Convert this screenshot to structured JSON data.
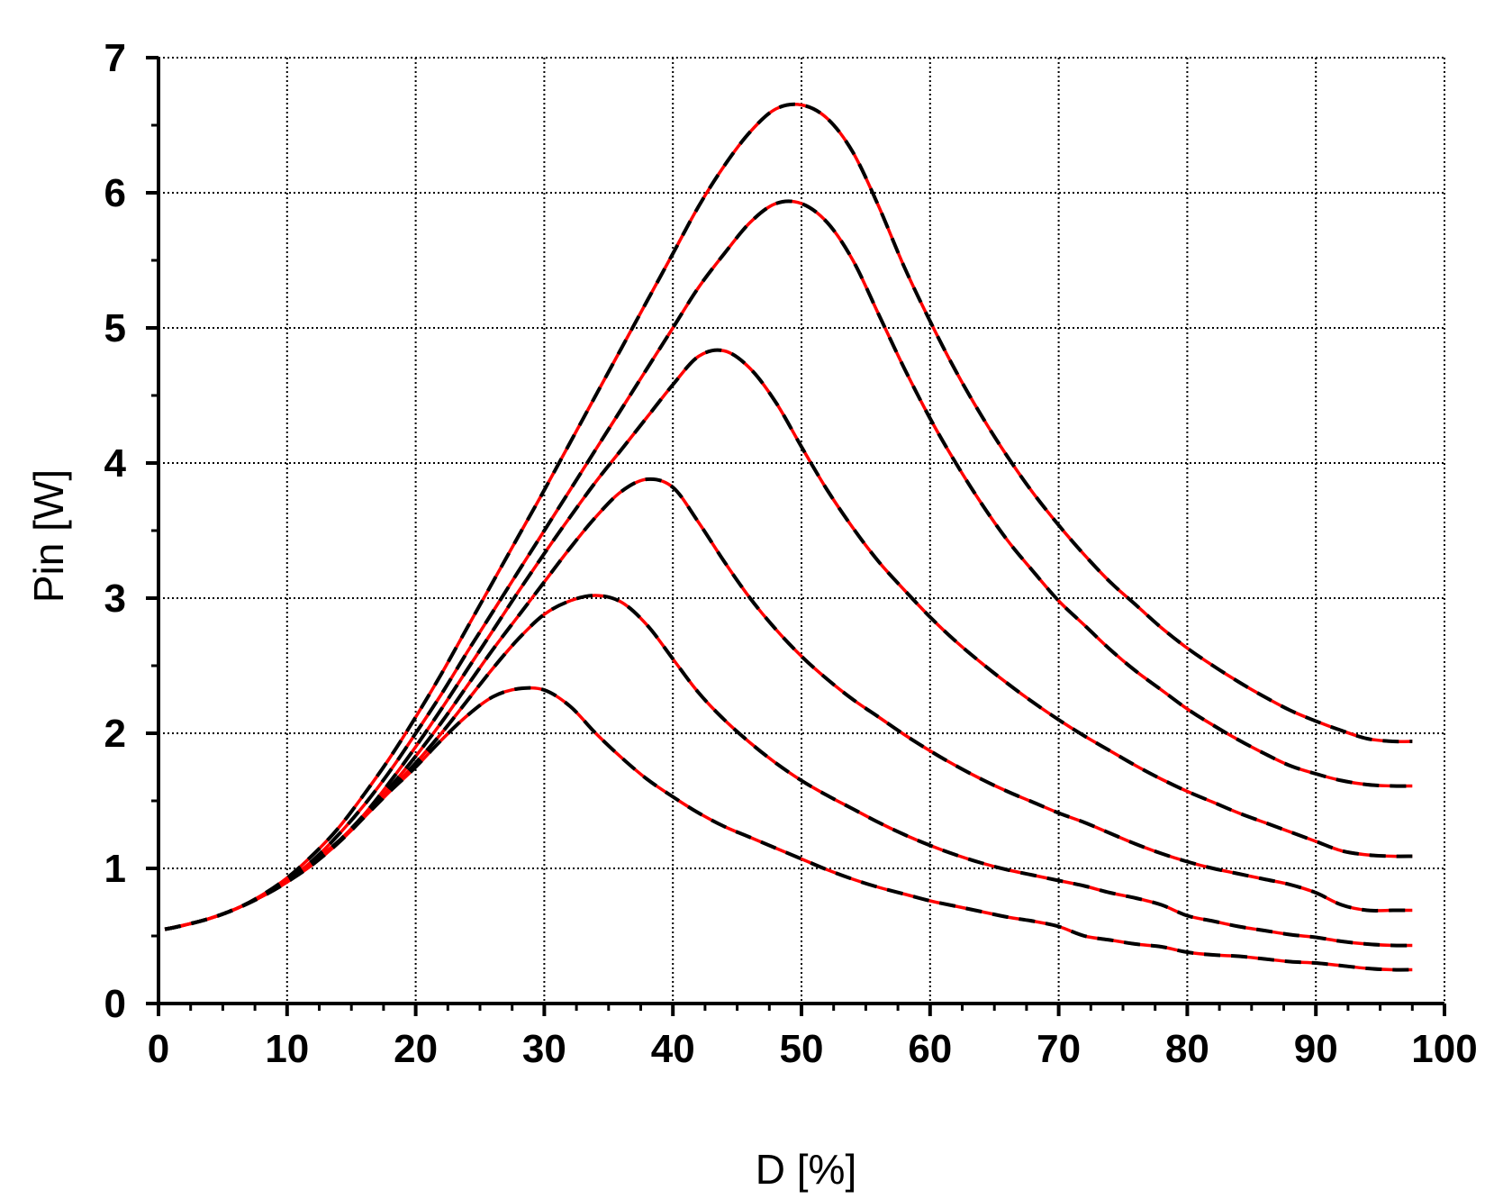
{
  "chart_data": {
    "type": "line",
    "xlabel": "D [%]",
    "ylabel": "Pin [W]",
    "xlim": [
      0,
      100
    ],
    "ylim": [
      0,
      7
    ],
    "xticks": [
      "0",
      "10",
      "20",
      "30",
      "40",
      "50",
      "60",
      "70",
      "80",
      "90",
      "100"
    ],
    "yticks": [
      "0",
      "1",
      "2",
      "3",
      "4",
      "5",
      "6",
      "7"
    ],
    "grid": true,
    "line_styles": {
      "simulated": "#ff0000",
      "measured": "dashed #000000"
    },
    "series": [
      {
        "x": [
          0.5,
          2,
          4,
          6,
          8,
          10,
          12,
          14,
          16,
          18,
          20,
          22,
          24,
          26,
          28,
          30,
          32,
          34,
          36,
          38,
          40,
          42,
          44,
          46,
          48,
          50,
          52,
          54,
          56,
          58,
          60,
          62,
          64,
          66,
          68,
          70,
          72,
          74,
          76,
          78,
          80,
          82,
          84,
          86,
          88,
          90,
          92,
          94,
          96,
          97.5
        ],
        "y": [
          0.55,
          0.58,
          0.63,
          0.7,
          0.79,
          0.9,
          1.05,
          1.2,
          1.38,
          1.57,
          1.75,
          1.95,
          2.13,
          2.27,
          2.33,
          2.32,
          2.2,
          2.0,
          1.82,
          1.66,
          1.53,
          1.41,
          1.31,
          1.23,
          1.15,
          1.07,
          0.99,
          0.92,
          0.86,
          0.81,
          0.76,
          0.72,
          0.68,
          0.64,
          0.61,
          0.57,
          0.5,
          0.47,
          0.44,
          0.42,
          0.38,
          0.36,
          0.35,
          0.33,
          0.31,
          0.3,
          0.28,
          0.26,
          0.25,
          0.25
        ]
      },
      {
        "x": [
          0.5,
          2,
          4,
          6,
          8,
          10,
          12,
          14,
          16,
          18,
          20,
          22,
          24,
          26,
          28,
          30,
          32,
          34,
          36,
          38,
          40,
          42,
          44,
          46,
          48,
          50,
          52,
          54,
          56,
          58,
          60,
          62,
          64,
          66,
          68,
          70,
          72,
          74,
          76,
          78,
          80,
          82,
          84,
          86,
          88,
          90,
          92,
          94,
          96,
          97.5
        ],
        "y": [
          0.55,
          0.58,
          0.63,
          0.7,
          0.79,
          0.9,
          1.04,
          1.2,
          1.38,
          1.58,
          1.78,
          2.0,
          2.24,
          2.48,
          2.7,
          2.88,
          2.98,
          3.02,
          2.97,
          2.8,
          2.55,
          2.3,
          2.1,
          1.93,
          1.78,
          1.65,
          1.54,
          1.44,
          1.34,
          1.25,
          1.17,
          1.1,
          1.04,
          0.99,
          0.95,
          0.91,
          0.87,
          0.82,
          0.78,
          0.73,
          0.65,
          0.61,
          0.57,
          0.54,
          0.51,
          0.49,
          0.46,
          0.44,
          0.43,
          0.43
        ]
      },
      {
        "x": [
          0.5,
          2,
          4,
          6,
          8,
          10,
          12,
          14,
          16,
          18,
          20,
          22,
          24,
          26,
          28,
          30,
          32,
          34,
          36,
          38,
          40,
          42,
          44,
          46,
          48,
          50,
          52,
          54,
          56,
          58,
          60,
          62,
          64,
          66,
          68,
          70,
          72,
          74,
          76,
          78,
          80,
          82,
          84,
          86,
          88,
          90,
          92,
          94,
          96,
          97.5
        ],
        "y": [
          0.55,
          0.58,
          0.63,
          0.7,
          0.79,
          0.9,
          1.03,
          1.19,
          1.38,
          1.6,
          1.83,
          2.08,
          2.35,
          2.62,
          2.87,
          3.12,
          3.37,
          3.6,
          3.79,
          3.88,
          3.82,
          3.56,
          3.27,
          3.0,
          2.77,
          2.57,
          2.4,
          2.25,
          2.12,
          1.99,
          1.87,
          1.76,
          1.66,
          1.57,
          1.49,
          1.41,
          1.34,
          1.26,
          1.18,
          1.11,
          1.05,
          1.0,
          0.96,
          0.92,
          0.88,
          0.82,
          0.73,
          0.69,
          0.69,
          0.69
        ]
      },
      {
        "x": [
          0.5,
          2,
          4,
          6,
          8,
          10,
          12,
          14,
          16,
          18,
          20,
          22,
          24,
          26,
          28,
          30,
          32,
          34,
          36,
          38,
          40,
          42,
          44,
          46,
          48,
          50,
          52,
          54,
          56,
          58,
          60,
          62,
          64,
          66,
          68,
          70,
          72,
          74,
          76,
          78,
          80,
          82,
          84,
          86,
          88,
          90,
          92,
          94,
          96,
          97.5
        ],
        "y": [
          0.55,
          0.58,
          0.63,
          0.7,
          0.79,
          0.9,
          1.03,
          1.2,
          1.4,
          1.64,
          1.9,
          2.18,
          2.47,
          2.76,
          3.05,
          3.33,
          3.6,
          3.86,
          4.1,
          4.34,
          4.58,
          4.79,
          4.83,
          4.7,
          4.45,
          4.12,
          3.8,
          3.52,
          3.27,
          3.06,
          2.86,
          2.68,
          2.52,
          2.37,
          2.23,
          2.1,
          1.98,
          1.87,
          1.76,
          1.66,
          1.57,
          1.49,
          1.41,
          1.34,
          1.27,
          1.2,
          1.13,
          1.1,
          1.09,
          1.09
        ]
      },
      {
        "x": [
          0.5,
          2,
          4,
          6,
          8,
          10,
          12,
          14,
          16,
          18,
          20,
          22,
          24,
          26,
          28,
          30,
          32,
          34,
          36,
          38,
          40,
          42,
          44,
          46,
          48,
          50,
          52,
          54,
          56,
          58,
          60,
          62,
          64,
          66,
          68,
          70,
          72,
          74,
          76,
          78,
          80,
          82,
          84,
          86,
          88,
          90,
          92,
          94,
          96,
          97.5
        ],
        "y": [
          0.55,
          0.58,
          0.63,
          0.7,
          0.79,
          0.91,
          1.06,
          1.25,
          1.47,
          1.72,
          2.0,
          2.29,
          2.6,
          2.9,
          3.2,
          3.5,
          3.8,
          4.1,
          4.4,
          4.7,
          5.0,
          5.3,
          5.55,
          5.78,
          5.92,
          5.92,
          5.78,
          5.5,
          5.1,
          4.7,
          4.33,
          4.0,
          3.7,
          3.43,
          3.2,
          2.98,
          2.8,
          2.62,
          2.46,
          2.32,
          2.18,
          2.06,
          1.95,
          1.85,
          1.76,
          1.7,
          1.65,
          1.62,
          1.61,
          1.61
        ]
      },
      {
        "x": [
          0.5,
          2,
          4,
          6,
          8,
          10,
          12,
          14,
          16,
          18,
          20,
          22,
          24,
          26,
          28,
          30,
          32,
          34,
          36,
          38,
          40,
          42,
          44,
          46,
          48,
          50,
          52,
          54,
          56,
          58,
          60,
          62,
          64,
          66,
          68,
          70,
          72,
          74,
          76,
          78,
          80,
          82,
          84,
          86,
          88,
          90,
          92,
          94,
          96,
          97.5
        ],
        "y": [
          0.55,
          0.58,
          0.63,
          0.7,
          0.8,
          0.93,
          1.1,
          1.3,
          1.55,
          1.82,
          2.12,
          2.44,
          2.78,
          3.12,
          3.46,
          3.8,
          4.15,
          4.5,
          4.85,
          5.2,
          5.55,
          5.9,
          6.2,
          6.45,
          6.62,
          6.65,
          6.55,
          6.3,
          5.9,
          5.45,
          5.05,
          4.68,
          4.35,
          4.05,
          3.78,
          3.54,
          3.32,
          3.12,
          2.95,
          2.78,
          2.63,
          2.5,
          2.38,
          2.27,
          2.17,
          2.09,
          2.02,
          1.96,
          1.94,
          1.94
        ]
      }
    ]
  }
}
